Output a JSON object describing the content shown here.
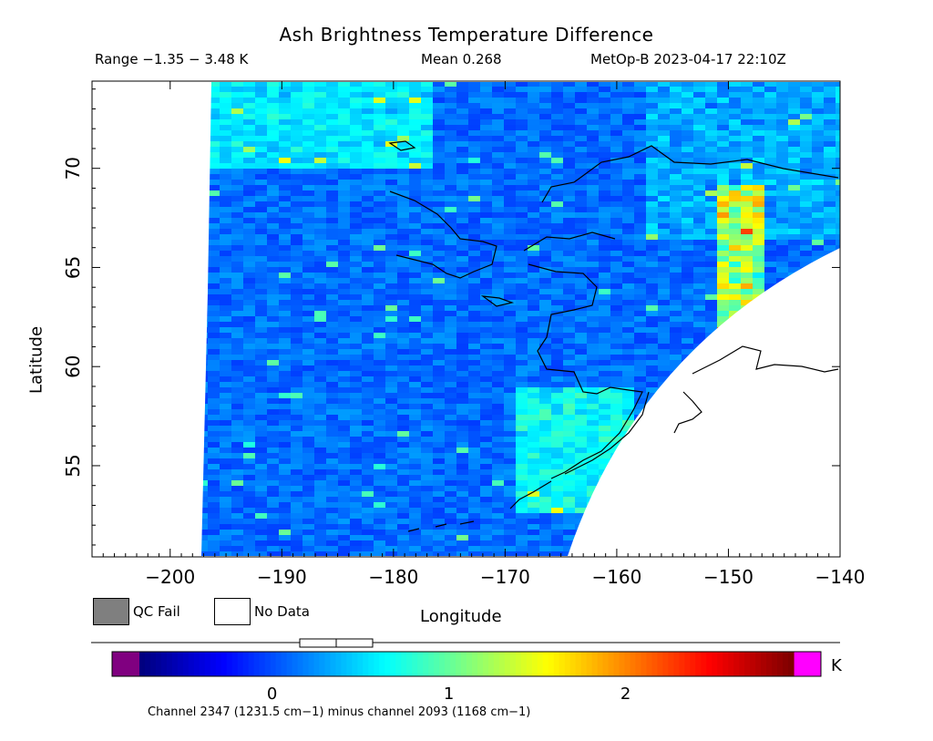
{
  "title": "Ash Brightness Temperature Difference",
  "subtitle": {
    "range": "Range −1.35 − 3.48 K",
    "mean": "Mean 0.268",
    "satellite": "MetOp-B 2023-04-17 22:10Z"
  },
  "axes": {
    "x": {
      "label": "Longitude",
      "min": -207,
      "max": -140,
      "ticks": [
        {
          "value": -200,
          "label": "−200"
        },
        {
          "value": -190,
          "label": "−190"
        },
        {
          "value": -180,
          "label": "−180"
        },
        {
          "value": -170,
          "label": "−170"
        },
        {
          "value": -160,
          "label": "−160"
        },
        {
          "value": -150,
          "label": "−150"
        },
        {
          "value": -140,
          "label": "−140"
        }
      ]
    },
    "y": {
      "label": "Latitude",
      "min": 50.4,
      "max": 74.4,
      "ticks": [
        {
          "value": 55,
          "label": "55"
        },
        {
          "value": 60,
          "label": "60"
        },
        {
          "value": 65,
          "label": "65"
        },
        {
          "value": 70,
          "label": "70"
        }
      ]
    }
  },
  "legend": {
    "qc_fail": "QC Fail",
    "no_data": "No Data"
  },
  "colorbar": {
    "units": "K",
    "min": -0.75,
    "max": 2.95,
    "ticks": [
      {
        "value": 0,
        "label": "0"
      },
      {
        "value": 1,
        "label": "1"
      },
      {
        "value": 2,
        "label": "2"
      }
    ],
    "note": "Channel 2347 (1231.5 cm−1) minus channel 2093 (1168 cm−1)",
    "under_color": "#800080",
    "over_color": "#ff00ff",
    "qc_color": "#7f7f7f"
  }
}
